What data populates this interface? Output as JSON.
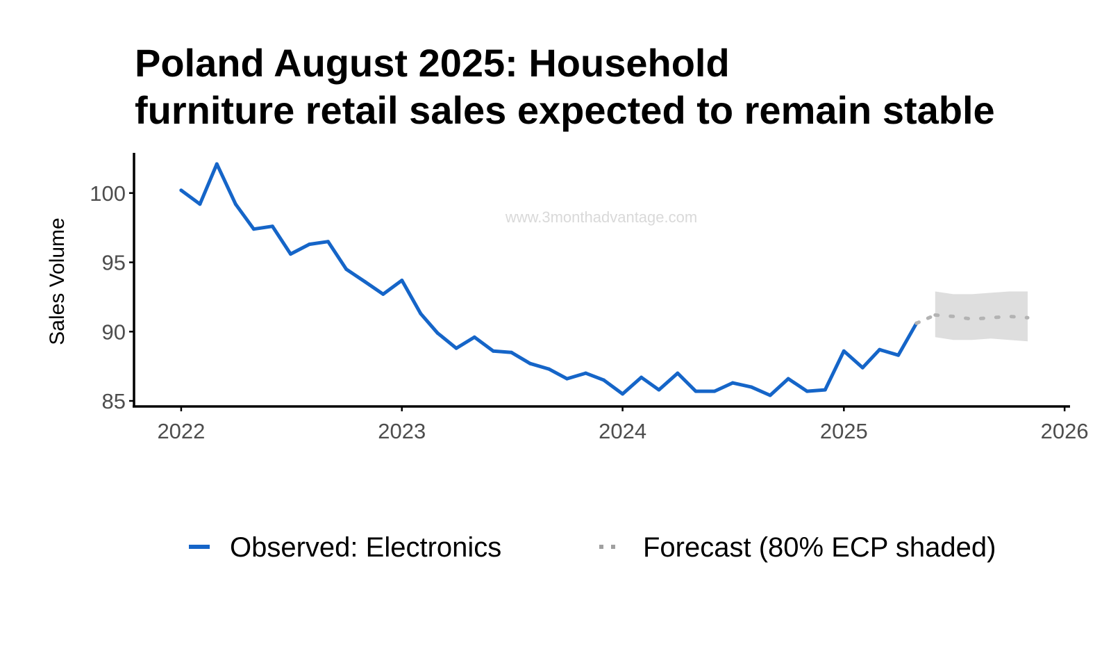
{
  "title_lines": [
    "Poland August 2025: Household",
    "furniture retail sales expected to remain stable"
  ],
  "watermark": "www.3monthadvantage.com",
  "colors": {
    "observed": "#1565c8",
    "forecast": "#b3b3b3",
    "band": "#dedede",
    "axis": "#000000",
    "tick_label": "#4d4d4d"
  },
  "chart_data": {
    "type": "line",
    "title": "Poland August 2025: Household furniture retail sales expected to remain stable",
    "xlabel": "",
    "ylabel": "Sales Volume",
    "xlim": [
      "2021-10-15",
      "2026-01-10"
    ],
    "ylim": [
      84.6,
      102.9
    ],
    "x_ticks": [
      {
        "date": "2022-01-01",
        "label": "2022"
      },
      {
        "date": "2023-01-01",
        "label": "2023"
      },
      {
        "date": "2024-01-01",
        "label": "2024"
      },
      {
        "date": "2025-01-01",
        "label": "2025"
      },
      {
        "date": "2026-01-01",
        "label": "2026"
      }
    ],
    "y_ticks": [
      {
        "value": 85,
        "label": "85"
      },
      {
        "value": 90,
        "label": "90"
      },
      {
        "value": 95,
        "label": "95"
      },
      {
        "value": 100,
        "label": "100"
      }
    ],
    "grid": false,
    "legend_position": "bottom",
    "series": [
      {
        "name": "Observed: Electronics",
        "style": "solid",
        "x": [
          "2022-01",
          "2022-02",
          "2022-03",
          "2022-04",
          "2022-05",
          "2022-06",
          "2022-07",
          "2022-08",
          "2022-09",
          "2022-10",
          "2022-11",
          "2022-12",
          "2023-01",
          "2023-02",
          "2023-03",
          "2023-04",
          "2023-05",
          "2023-06",
          "2023-07",
          "2023-08",
          "2023-09",
          "2023-10",
          "2023-11",
          "2023-12",
          "2024-01",
          "2024-02",
          "2024-03",
          "2024-04",
          "2024-05",
          "2024-06",
          "2024-07",
          "2024-08",
          "2024-09",
          "2024-10",
          "2024-11",
          "2024-12",
          "2025-01",
          "2025-02",
          "2025-03",
          "2025-04",
          "2025-05"
        ],
        "values": [
          100.2,
          99.2,
          102.1,
          99.2,
          97.4,
          97.6,
          95.6,
          96.3,
          96.5,
          94.5,
          93.6,
          92.7,
          93.7,
          91.3,
          89.9,
          88.8,
          89.6,
          88.6,
          88.5,
          87.7,
          87.3,
          86.6,
          87.0,
          86.5,
          85.5,
          86.7,
          85.8,
          87.0,
          85.7,
          85.7,
          86.3,
          86.0,
          85.4,
          86.6,
          85.7,
          85.8,
          88.6,
          87.4,
          88.7,
          88.3,
          90.6
        ]
      },
      {
        "name": "Forecast (80% ECP shaded)",
        "style": "dotted",
        "x": [
          "2025-06",
          "2025-07",
          "2025-08",
          "2025-09",
          "2025-10",
          "2025-11"
        ],
        "values": [
          91.2,
          91.1,
          90.9,
          91.0,
          91.1,
          91.0
        ],
        "band_lower": [
          89.6,
          89.4,
          89.4,
          89.5,
          89.4,
          89.3
        ],
        "band_upper": [
          92.9,
          92.7,
          92.7,
          92.8,
          92.9,
          92.9
        ]
      }
    ],
    "connector": {
      "x": [
        "2025-05",
        "2025-06"
      ],
      "values": [
        90.6,
        91.2
      ]
    }
  }
}
